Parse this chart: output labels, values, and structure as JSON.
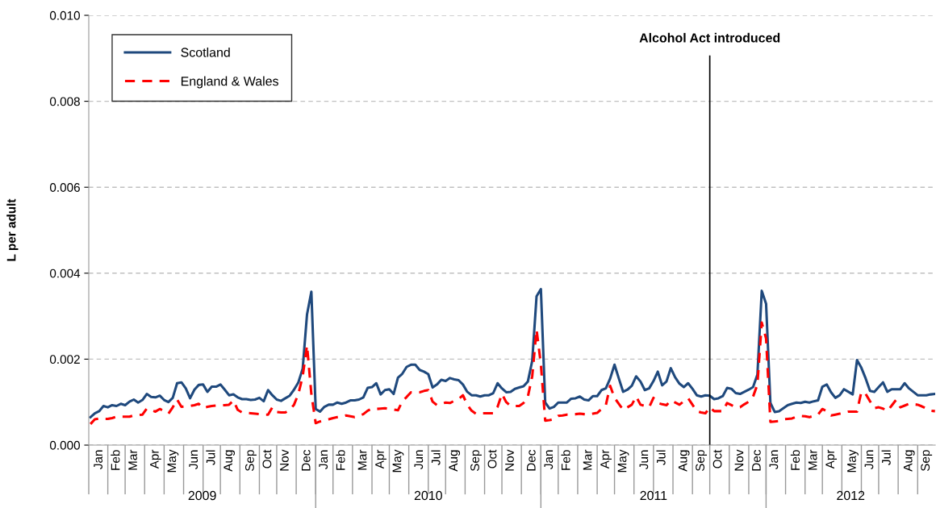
{
  "chart_data": {
    "type": "line",
    "ylabel": "L per adult",
    "categories": [
      null,
      null,
      "Jan",
      null,
      null,
      null,
      "Feb",
      null,
      null,
      null,
      "Mar",
      null,
      null,
      null,
      null,
      "Apr",
      null,
      null,
      null,
      "May",
      null,
      null,
      null,
      null,
      "Jun",
      null,
      null,
      null,
      "Jul",
      null,
      null,
      null,
      "Aug",
      null,
      null,
      null,
      null,
      "Sep",
      null,
      null,
      null,
      "Oct",
      null,
      null,
      null,
      "Nov",
      null,
      null,
      null,
      null,
      "Dec",
      null,
      null,
      null,
      "Jan",
      null,
      null,
      null,
      "Feb",
      null,
      null,
      null,
      null,
      "Mar",
      null,
      null,
      null,
      "Apr",
      null,
      null,
      null,
      "May",
      null,
      null,
      null,
      null,
      "Jun",
      null,
      null,
      null,
      "Jul",
      null,
      null,
      null,
      "Aug",
      null,
      null,
      null,
      null,
      "Sep",
      null,
      null,
      null,
      "Oct",
      null,
      null,
      null,
      "Nov",
      null,
      null,
      null,
      null,
      "Dec",
      null,
      null,
      null,
      "Jan",
      null,
      null,
      null,
      "Feb",
      null,
      null,
      null,
      null,
      "Mar",
      null,
      null,
      null,
      "Apr",
      null,
      null,
      null,
      "May",
      null,
      null,
      null,
      null,
      "Jun",
      null,
      null,
      null,
      "Jul",
      null,
      null,
      null,
      null,
      "Aug",
      null,
      null,
      null,
      "Sep",
      null,
      null,
      null,
      "Oct",
      null,
      null,
      null,
      null,
      "Nov",
      null,
      null,
      null,
      "Dec",
      null,
      null,
      null,
      "Jan",
      null,
      null,
      null,
      null,
      "Feb",
      null,
      null,
      null,
      "Mar",
      null,
      null,
      null,
      "Apr",
      null,
      null,
      null,
      null,
      "May",
      null,
      null,
      null,
      "Jun",
      null,
      null,
      null,
      "Jul",
      null,
      null,
      null,
      null,
      "Aug",
      null,
      null,
      null,
      "Sep",
      null,
      null
    ],
    "ylim": [
      0,
      0.01
    ],
    "yticks": [
      {
        "value": 0,
        "label": "0.000"
      },
      {
        "value": 0.002,
        "label": "0.002"
      },
      {
        "value": 0.004,
        "label": "0.004"
      },
      {
        "value": 0.006,
        "label": "0.006"
      },
      {
        "value": 0.008,
        "label": "0.008"
      },
      {
        "value": 0.01,
        "label": "0.010"
      }
    ],
    "grid": "y",
    "legend": "top left",
    "annotations": [
      "2009",
      "2010",
      "2011",
      "2012",
      "Alcohol Act introduced"
    ],
    "series": [
      {
        "name": "Scotland",
        "color": "#1f497d",
        "line_style": "solid",
        "values": [
          0.00065,
          0.00074,
          0.00079,
          0.00091,
          0.00088,
          0.00093,
          0.00091,
          0.00096,
          0.00093,
          0.00101,
          0.00106,
          0.00099,
          0.00105,
          0.00119,
          0.00112,
          0.00111,
          0.00115,
          0.00105,
          0.001,
          0.0011,
          0.00144,
          0.00146,
          0.00132,
          0.00109,
          0.00129,
          0.0014,
          0.00141,
          0.00124,
          0.00136,
          0.00136,
          0.00141,
          0.00129,
          0.00116,
          0.00118,
          0.00111,
          0.00107,
          0.00107,
          0.00105,
          0.00106,
          0.0011,
          0.00102,
          0.00128,
          0.00116,
          0.00106,
          0.00103,
          0.00109,
          0.00115,
          0.00129,
          0.00146,
          0.00178,
          0.00304,
          0.00357,
          0.00084,
          0.00078,
          0.00089,
          0.00094,
          0.00094,
          0.00099,
          0.00096,
          0.00099,
          0.00104,
          0.00104,
          0.00106,
          0.00111,
          0.00133,
          0.00135,
          0.00144,
          0.00118,
          0.00128,
          0.0013,
          0.00119,
          0.00157,
          0.00166,
          0.00182,
          0.00187,
          0.00187,
          0.00175,
          0.00171,
          0.00165,
          0.00134,
          0.00141,
          0.00152,
          0.00149,
          0.00156,
          0.00153,
          0.00151,
          0.00141,
          0.00124,
          0.00116,
          0.00116,
          0.00113,
          0.00116,
          0.00116,
          0.00121,
          0.00144,
          0.00132,
          0.00123,
          0.00124,
          0.00131,
          0.00134,
          0.00137,
          0.00148,
          0.00196,
          0.00346,
          0.00363,
          0.00099,
          0.00085,
          0.00089,
          0.00099,
          0.00099,
          0.00099,
          0.00108,
          0.00109,
          0.00113,
          0.00106,
          0.00104,
          0.00114,
          0.00114,
          0.00128,
          0.00132,
          0.00155,
          0.00187,
          0.00155,
          0.00124,
          0.00129,
          0.00138,
          0.0016,
          0.00148,
          0.00128,
          0.00132,
          0.00149,
          0.00171,
          0.00139,
          0.00148,
          0.00179,
          0.00158,
          0.00143,
          0.00135,
          0.00144,
          0.00131,
          0.00116,
          0.00113,
          0.00116,
          0.00115,
          0.00107,
          0.00109,
          0.00114,
          0.00133,
          0.00131,
          0.00121,
          0.00119,
          0.00124,
          0.00129,
          0.00135,
          0.00164,
          0.00359,
          0.00329,
          0.00098,
          0.00077,
          0.00079,
          0.00086,
          0.00093,
          0.00096,
          0.00099,
          0.00098,
          0.00101,
          0.00099,
          0.00102,
          0.00104,
          0.00136,
          0.00141,
          0.00123,
          0.0011,
          0.00116,
          0.0013,
          0.00124,
          0.00118,
          0.00198,
          0.0018,
          0.00155,
          0.00126,
          0.00124,
          0.00135,
          0.00146,
          0.00124,
          0.0013,
          0.0013,
          0.0013,
          0.00144,
          0.00132,
          0.00124,
          0.00116,
          0.00116,
          0.00116,
          0.00118,
          0.00119
        ]
      },
      {
        "name": "England & Wales",
        "color": "#ff0000",
        "line_style": "dashed",
        "values": [
          0.00049,
          0.0006,
          0.00062,
          0.00061,
          0.00061,
          0.00063,
          0.00066,
          0.00066,
          0.00066,
          0.00066,
          0.00069,
          0.0007,
          0.00071,
          0.00085,
          0.00081,
          0.00078,
          0.00084,
          0.00079,
          0.00073,
          0.00088,
          0.00106,
          0.00089,
          0.0009,
          0.00091,
          0.00093,
          0.00096,
          0.00086,
          0.00089,
          0.00091,
          0.00092,
          0.00093,
          0.00093,
          0.00094,
          0.00104,
          0.00082,
          0.00076,
          0.00075,
          0.00074,
          0.00073,
          0.00072,
          0.00071,
          0.00071,
          0.00088,
          0.00077,
          0.00076,
          0.00076,
          0.00082,
          0.00094,
          0.00119,
          0.0016,
          0.00232,
          0.00119,
          0.00051,
          0.00055,
          0.00058,
          0.0006,
          0.00063,
          0.00065,
          0.00066,
          0.00069,
          0.00067,
          0.00065,
          0.00068,
          0.00072,
          0.0008,
          0.00085,
          0.00084,
          0.00085,
          0.00086,
          0.00084,
          0.00083,
          0.00081,
          0.00102,
          0.00112,
          0.00123,
          0.00123,
          0.00123,
          0.00126,
          0.00128,
          0.00101,
          0.00093,
          0.00096,
          0.00099,
          0.00098,
          0.00103,
          0.00107,
          0.00116,
          0.00094,
          0.0008,
          0.00073,
          0.00074,
          0.00074,
          0.00074,
          0.00074,
          0.00089,
          0.00119,
          0.001,
          0.00091,
          0.00091,
          0.00091,
          0.00098,
          0.00113,
          0.0016,
          0.00269,
          0.00188,
          0.00057,
          0.00058,
          0.0006,
          0.00068,
          0.00069,
          0.00071,
          0.00072,
          0.00072,
          0.00073,
          0.00072,
          0.00071,
          0.00073,
          0.00075,
          0.00084,
          0.00093,
          0.00138,
          0.0011,
          0.00096,
          0.00082,
          0.00088,
          0.00094,
          0.00113,
          0.00094,
          0.00091,
          0.00088,
          0.0011,
          0.00098,
          0.00095,
          0.00093,
          0.00104,
          0.00099,
          0.00094,
          0.00102,
          0.00109,
          0.00094,
          0.00079,
          0.00076,
          0.00074,
          0.00088,
          0.00079,
          0.00079,
          0.00079,
          0.00098,
          0.00093,
          0.00088,
          0.00088,
          0.00095,
          0.00101,
          0.00113,
          0.00141,
          0.00285,
          0.00248,
          0.00054,
          0.00055,
          0.00056,
          0.0006,
          0.00061,
          0.00062,
          0.00066,
          0.00068,
          0.00067,
          0.00065,
          0.00068,
          0.00071,
          0.00084,
          0.00079,
          0.00069,
          0.00071,
          0.00073,
          0.00076,
          0.00078,
          0.00078,
          0.00078,
          0.00124,
          0.00119,
          0.00102,
          0.00086,
          0.00088,
          0.00085,
          0.00079,
          0.00092,
          0.00105,
          0.00088,
          0.00092,
          0.00096,
          0.00095,
          0.00094,
          0.0009,
          0.00085,
          0.0008,
          0.00079
        ]
      }
    ]
  }
}
